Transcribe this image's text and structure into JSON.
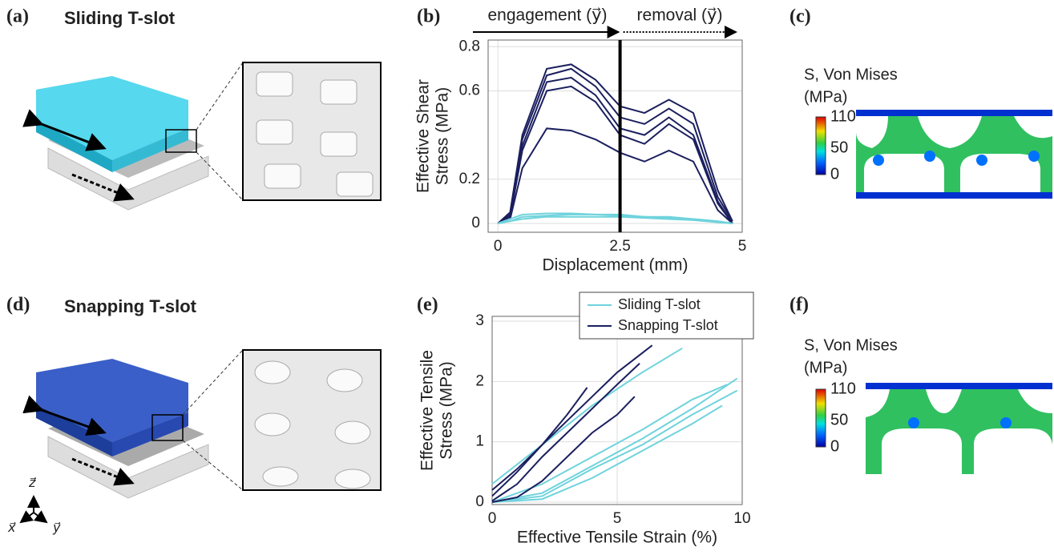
{
  "panels": {
    "a": {
      "label": "(a)",
      "title": "Sliding T-slot"
    },
    "b": {
      "label": "(b)"
    },
    "c": {
      "label": "(c)",
      "colorbar": {
        "title": "S, Von Mises",
        "unit": "(MPa)",
        "ticks": [
          110,
          50,
          0
        ]
      }
    },
    "d": {
      "label": "(d)",
      "title": "Snapping T-slot",
      "axes": {
        "z": "z⃗",
        "x": "x⃗",
        "y": "y⃗"
      }
    },
    "e": {
      "label": "(e)"
    },
    "f": {
      "label": "(f)",
      "colorbar": {
        "title": "S, Von Mises",
        "unit": "(MPa)",
        "ticks": [
          110,
          50,
          0
        ]
      }
    }
  },
  "chart_data": [
    {
      "type": "line",
      "annotations": [
        "engagement (y⃗)",
        "removal (y⃗)"
      ],
      "xlabel": "Displacement (mm)",
      "ylabel": [
        "Effective Shear",
        "Stress (MPa)"
      ],
      "xlim": [
        -0.2,
        5
      ],
      "ylim": [
        -0.04,
        0.83
      ],
      "xticks": [
        0,
        2.5,
        5
      ],
      "yticks": [
        0,
        0.2,
        0.6,
        0.8
      ],
      "grid": true,
      "vline": 2.5,
      "groups": [
        {
          "color": "#1b1f5e",
          "lines": [
            {
              "x": [
                0,
                0.25,
                0.5,
                1,
                1.5,
                2,
                2.5,
                3,
                3.5,
                4,
                4.5,
                4.8
              ],
              "y": [
                0,
                0.05,
                0.4,
                0.7,
                0.72,
                0.65,
                0.53,
                0.5,
                0.56,
                0.5,
                0.15,
                0.01
              ]
            },
            {
              "x": [
                0,
                0.25,
                0.5,
                1,
                1.5,
                2,
                2.5,
                3,
                3.5,
                4,
                4.5,
                4.8
              ],
              "y": [
                0,
                0.04,
                0.38,
                0.67,
                0.7,
                0.62,
                0.48,
                0.45,
                0.52,
                0.45,
                0.12,
                0.01
              ]
            },
            {
              "x": [
                0,
                0.25,
                0.5,
                1,
                1.5,
                2,
                2.5,
                3,
                3.5,
                4,
                4.5,
                4.8
              ],
              "y": [
                0,
                0.03,
                0.35,
                0.64,
                0.66,
                0.58,
                0.43,
                0.4,
                0.48,
                0.4,
                0.1,
                0
              ]
            },
            {
              "x": [
                0,
                0.25,
                0.5,
                1,
                1.5,
                2,
                2.5,
                3,
                3.5,
                4,
                4.5,
                4.8
              ],
              "y": [
                0,
                0.03,
                0.33,
                0.6,
                0.62,
                0.55,
                0.4,
                0.36,
                0.45,
                0.38,
                0.09,
                0
              ]
            },
            {
              "x": [
                0,
                0.25,
                0.5,
                1,
                1.5,
                2,
                2.5,
                3,
                3.5,
                4,
                4.5,
                4.8
              ],
              "y": [
                0,
                0.02,
                0.25,
                0.43,
                0.42,
                0.38,
                0.32,
                0.28,
                0.33,
                0.28,
                0.06,
                0
              ]
            }
          ]
        },
        {
          "color": "#6fd3dc",
          "lines": [
            {
              "x": [
                0,
                0.25,
                0.5,
                1,
                1.5,
                2,
                2.5,
                3,
                3.5,
                4,
                4.5,
                4.8
              ],
              "y": [
                0,
                0.02,
                0.04,
                0.045,
                0.045,
                0.04,
                0.04,
                0.03,
                0.03,
                0.02,
                0.01,
                0
              ]
            },
            {
              "x": [
                0,
                0.25,
                0.5,
                1,
                1.5,
                2,
                2.5,
                3,
                3.5,
                4,
                4.5,
                4.8
              ],
              "y": [
                0,
                0.01,
                0.03,
                0.035,
                0.04,
                0.04,
                0.035,
                0.03,
                0.025,
                0.02,
                0.01,
                0
              ]
            },
            {
              "x": [
                0,
                0.25,
                0.5,
                1,
                1.5,
                2,
                2.5,
                3,
                3.5,
                4,
                4.5,
                4.8
              ],
              "y": [
                0,
                0.01,
                0.02,
                0.03,
                0.03,
                0.03,
                0.03,
                0.025,
                0.02,
                0.015,
                0.005,
                0
              ]
            }
          ]
        }
      ]
    },
    {
      "type": "line",
      "xlabel": "Effective Tensile Strain (%)",
      "ylabel": [
        "Effective Tensile",
        "Stress (MPa)"
      ],
      "xlim": [
        0,
        10
      ],
      "ylim": [
        -0.04,
        3.08
      ],
      "xticks": [
        0,
        5,
        10
      ],
      "yticks": [
        0,
        1,
        2,
        3
      ],
      "grid": true,
      "legend": "top-right",
      "groups": [
        {
          "name": "Sliding T-slot",
          "color": "#6fd3dc",
          "lines": [
            {
              "x": [
                0,
                2,
                4,
                6,
                7.6
              ],
              "y": [
                0.3,
                0.95,
                1.6,
                2.15,
                2.55
              ]
            },
            {
              "x": [
                0,
                2,
                4,
                6,
                8,
                9.8
              ],
              "y": [
                0,
                0.1,
                0.55,
                0.95,
                1.45,
                1.85
              ]
            },
            {
              "x": [
                0,
                2,
                4,
                6,
                8,
                9.8
              ],
              "y": [
                0,
                0.15,
                0.6,
                1.05,
                1.55,
                2.05
              ]
            },
            {
              "x": [
                0,
                2,
                4,
                6,
                8,
                9.2
              ],
              "y": [
                0,
                0.05,
                0.4,
                0.85,
                1.3,
                1.6
              ]
            },
            {
              "x": [
                0,
                2,
                4,
                6,
                8,
                9.4
              ],
              "y": [
                0,
                0.3,
                0.75,
                1.2,
                1.7,
                1.95
              ]
            }
          ]
        },
        {
          "name": "Snapping T-slot",
          "color": "#1b1f5e",
          "lines": [
            {
              "x": [
                0,
                1,
                2,
                3,
                4,
                5,
                6.4
              ],
              "y": [
                0.2,
                0.55,
                0.95,
                1.35,
                1.75,
                2.15,
                2.6
              ]
            },
            {
              "x": [
                0,
                1,
                2,
                3,
                4,
                5,
                5.9
              ],
              "y": [
                0.02,
                0.3,
                0.75,
                1.15,
                1.55,
                1.95,
                2.3
              ]
            },
            {
              "x": [
                0,
                1,
                2,
                3,
                4,
                5,
                5.7
              ],
              "y": [
                0,
                0.08,
                0.35,
                0.75,
                1.15,
                1.45,
                1.75
              ]
            },
            {
              "x": [
                0,
                1,
                2,
                3,
                3.8
              ],
              "y": [
                0.1,
                0.5,
                0.95,
                1.45,
                1.9
              ]
            }
          ]
        }
      ]
    }
  ]
}
